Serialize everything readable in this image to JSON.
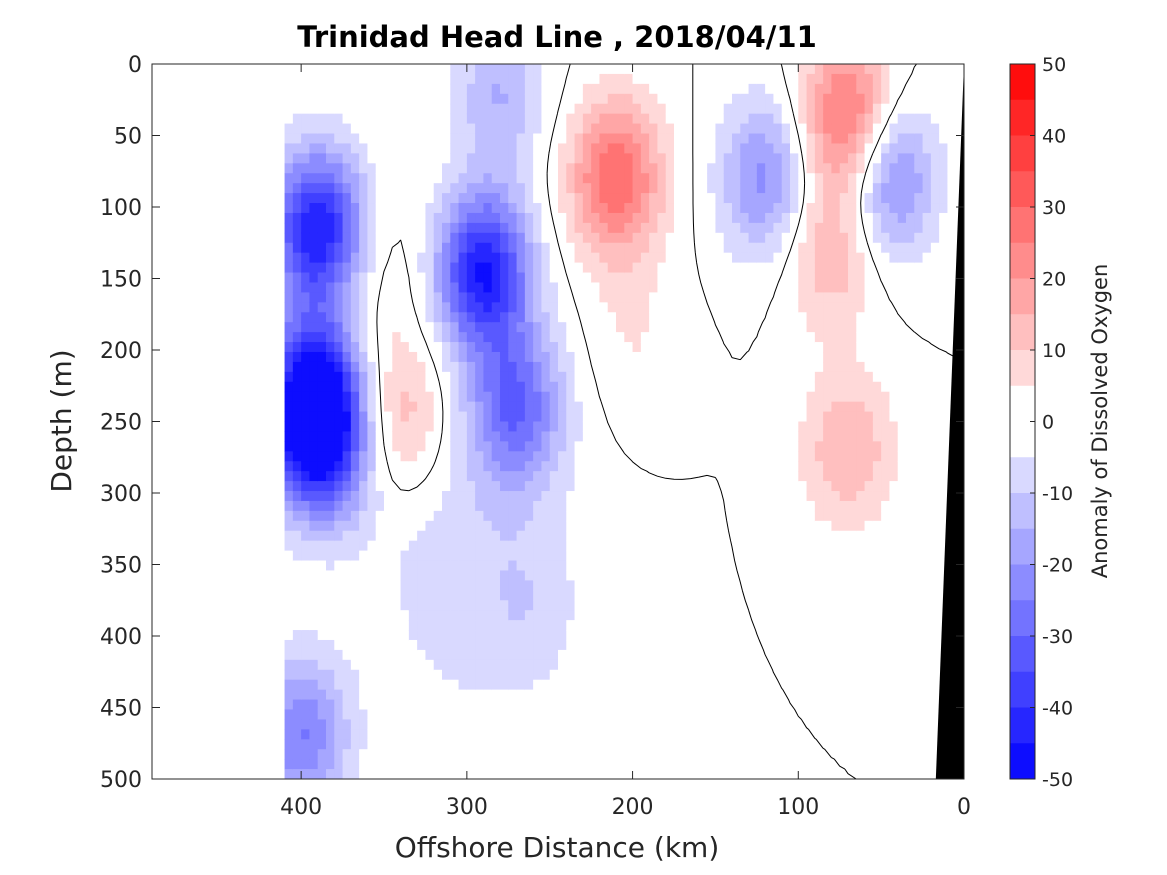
{
  "chart_data": {
    "type": "heatmap",
    "subtype": "filled-contour-section",
    "title": "Trinidad Head Line , 2018/04/11",
    "xlabel": "Offshore Distance (km)",
    "ylabel": "Depth (m)",
    "colorbar_label": "Anomaly of Dissolved Oxygen",
    "xlim": [
      490,
      0
    ],
    "ylim": [
      500,
      0
    ],
    "y_reversed": true,
    "x_reversed": true,
    "x_ticks": [
      400,
      300,
      200,
      100,
      0
    ],
    "y_ticks": [
      0,
      50,
      100,
      150,
      200,
      250,
      300,
      350,
      400,
      450,
      500
    ],
    "colorbar_ticks": [
      50,
      40,
      30,
      20,
      10,
      0,
      -10,
      -20,
      -30,
      -40,
      -50
    ],
    "color_range": [
      -50,
      50
    ],
    "color_levels": 20,
    "data_extent_x_km": [
      410,
      0
    ],
    "zero_contour": "black line",
    "bathymetry_color": "#000000",
    "features": [
      {
        "x": 390,
        "depth": 115,
        "value": -45
      },
      {
        "x": 393,
        "depth": 230,
        "value": -42
      },
      {
        "x": 388,
        "depth": 265,
        "value": -40
      },
      {
        "x": 290,
        "depth": 145,
        "value": -45
      },
      {
        "x": 270,
        "depth": 240,
        "value": -28
      },
      {
        "x": 340,
        "depth": 245,
        "value": 15
      },
      {
        "x": 350,
        "depth": 150,
        "value": 5
      },
      {
        "x": 210,
        "depth": 80,
        "value": 30
      },
      {
        "x": 200,
        "depth": 190,
        "value": 5
      },
      {
        "x": 70,
        "depth": 38,
        "value": 30
      },
      {
        "x": 80,
        "depth": 130,
        "value": 15
      },
      {
        "x": 70,
        "depth": 270,
        "value": 15
      },
      {
        "x": 120,
        "depth": 80,
        "value": -22
      },
      {
        "x": 45,
        "depth": 80,
        "value": -25
      },
      {
        "x": 280,
        "depth": 20,
        "value": -15
      },
      {
        "x": 400,
        "depth": 470,
        "value": -25
      },
      {
        "x": 260,
        "depth": 380,
        "value": -5
      },
      {
        "x": 140,
        "depth": 320,
        "value": 0
      }
    ]
  }
}
